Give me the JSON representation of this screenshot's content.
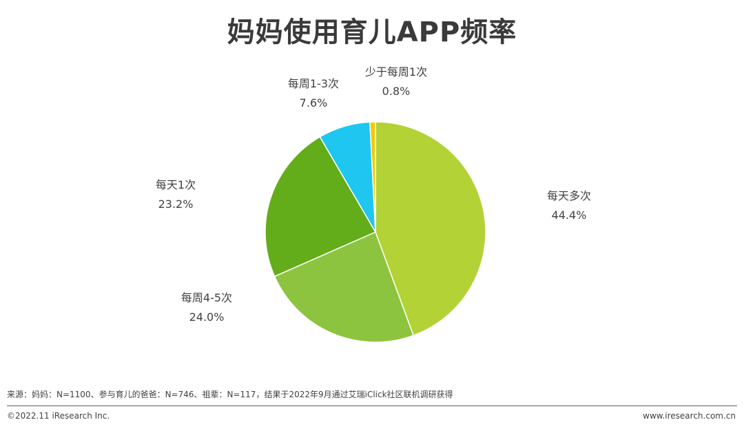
{
  "chart_data": {
    "type": "pie",
    "title": "妈妈使用育儿APP频率",
    "unit": "%",
    "start_angle_deg": -14,
    "slices": [
      {
        "name": "每天多次",
        "label": "44.4%",
        "value": 44.4,
        "color": "#b2d235"
      },
      {
        "name": "每周4-5次",
        "label": "24.0%",
        "value": 24.0,
        "color": "#8cc43f"
      },
      {
        "name": "每天1次",
        "label": "23.2%",
        "value": 23.2,
        "color": "#64ad1a"
      },
      {
        "name": "每周1-3次",
        "label": "7.6%",
        "value": 7.6,
        "color": "#1fc6ef"
      },
      {
        "name": "少于每周1次",
        "label": "0.8%",
        "value": 0.8,
        "color": "#f5c800"
      }
    ]
  },
  "footer": {
    "source": "来源：妈妈：N=1100、参与育儿的爸爸：N=746、祖辈：N=117，结果于2022年9月通过艾瑞iClick社区联机调研获得",
    "copyright": "©2022.11 iResearch Inc.",
    "website": "www.iresearch.com.cn"
  }
}
